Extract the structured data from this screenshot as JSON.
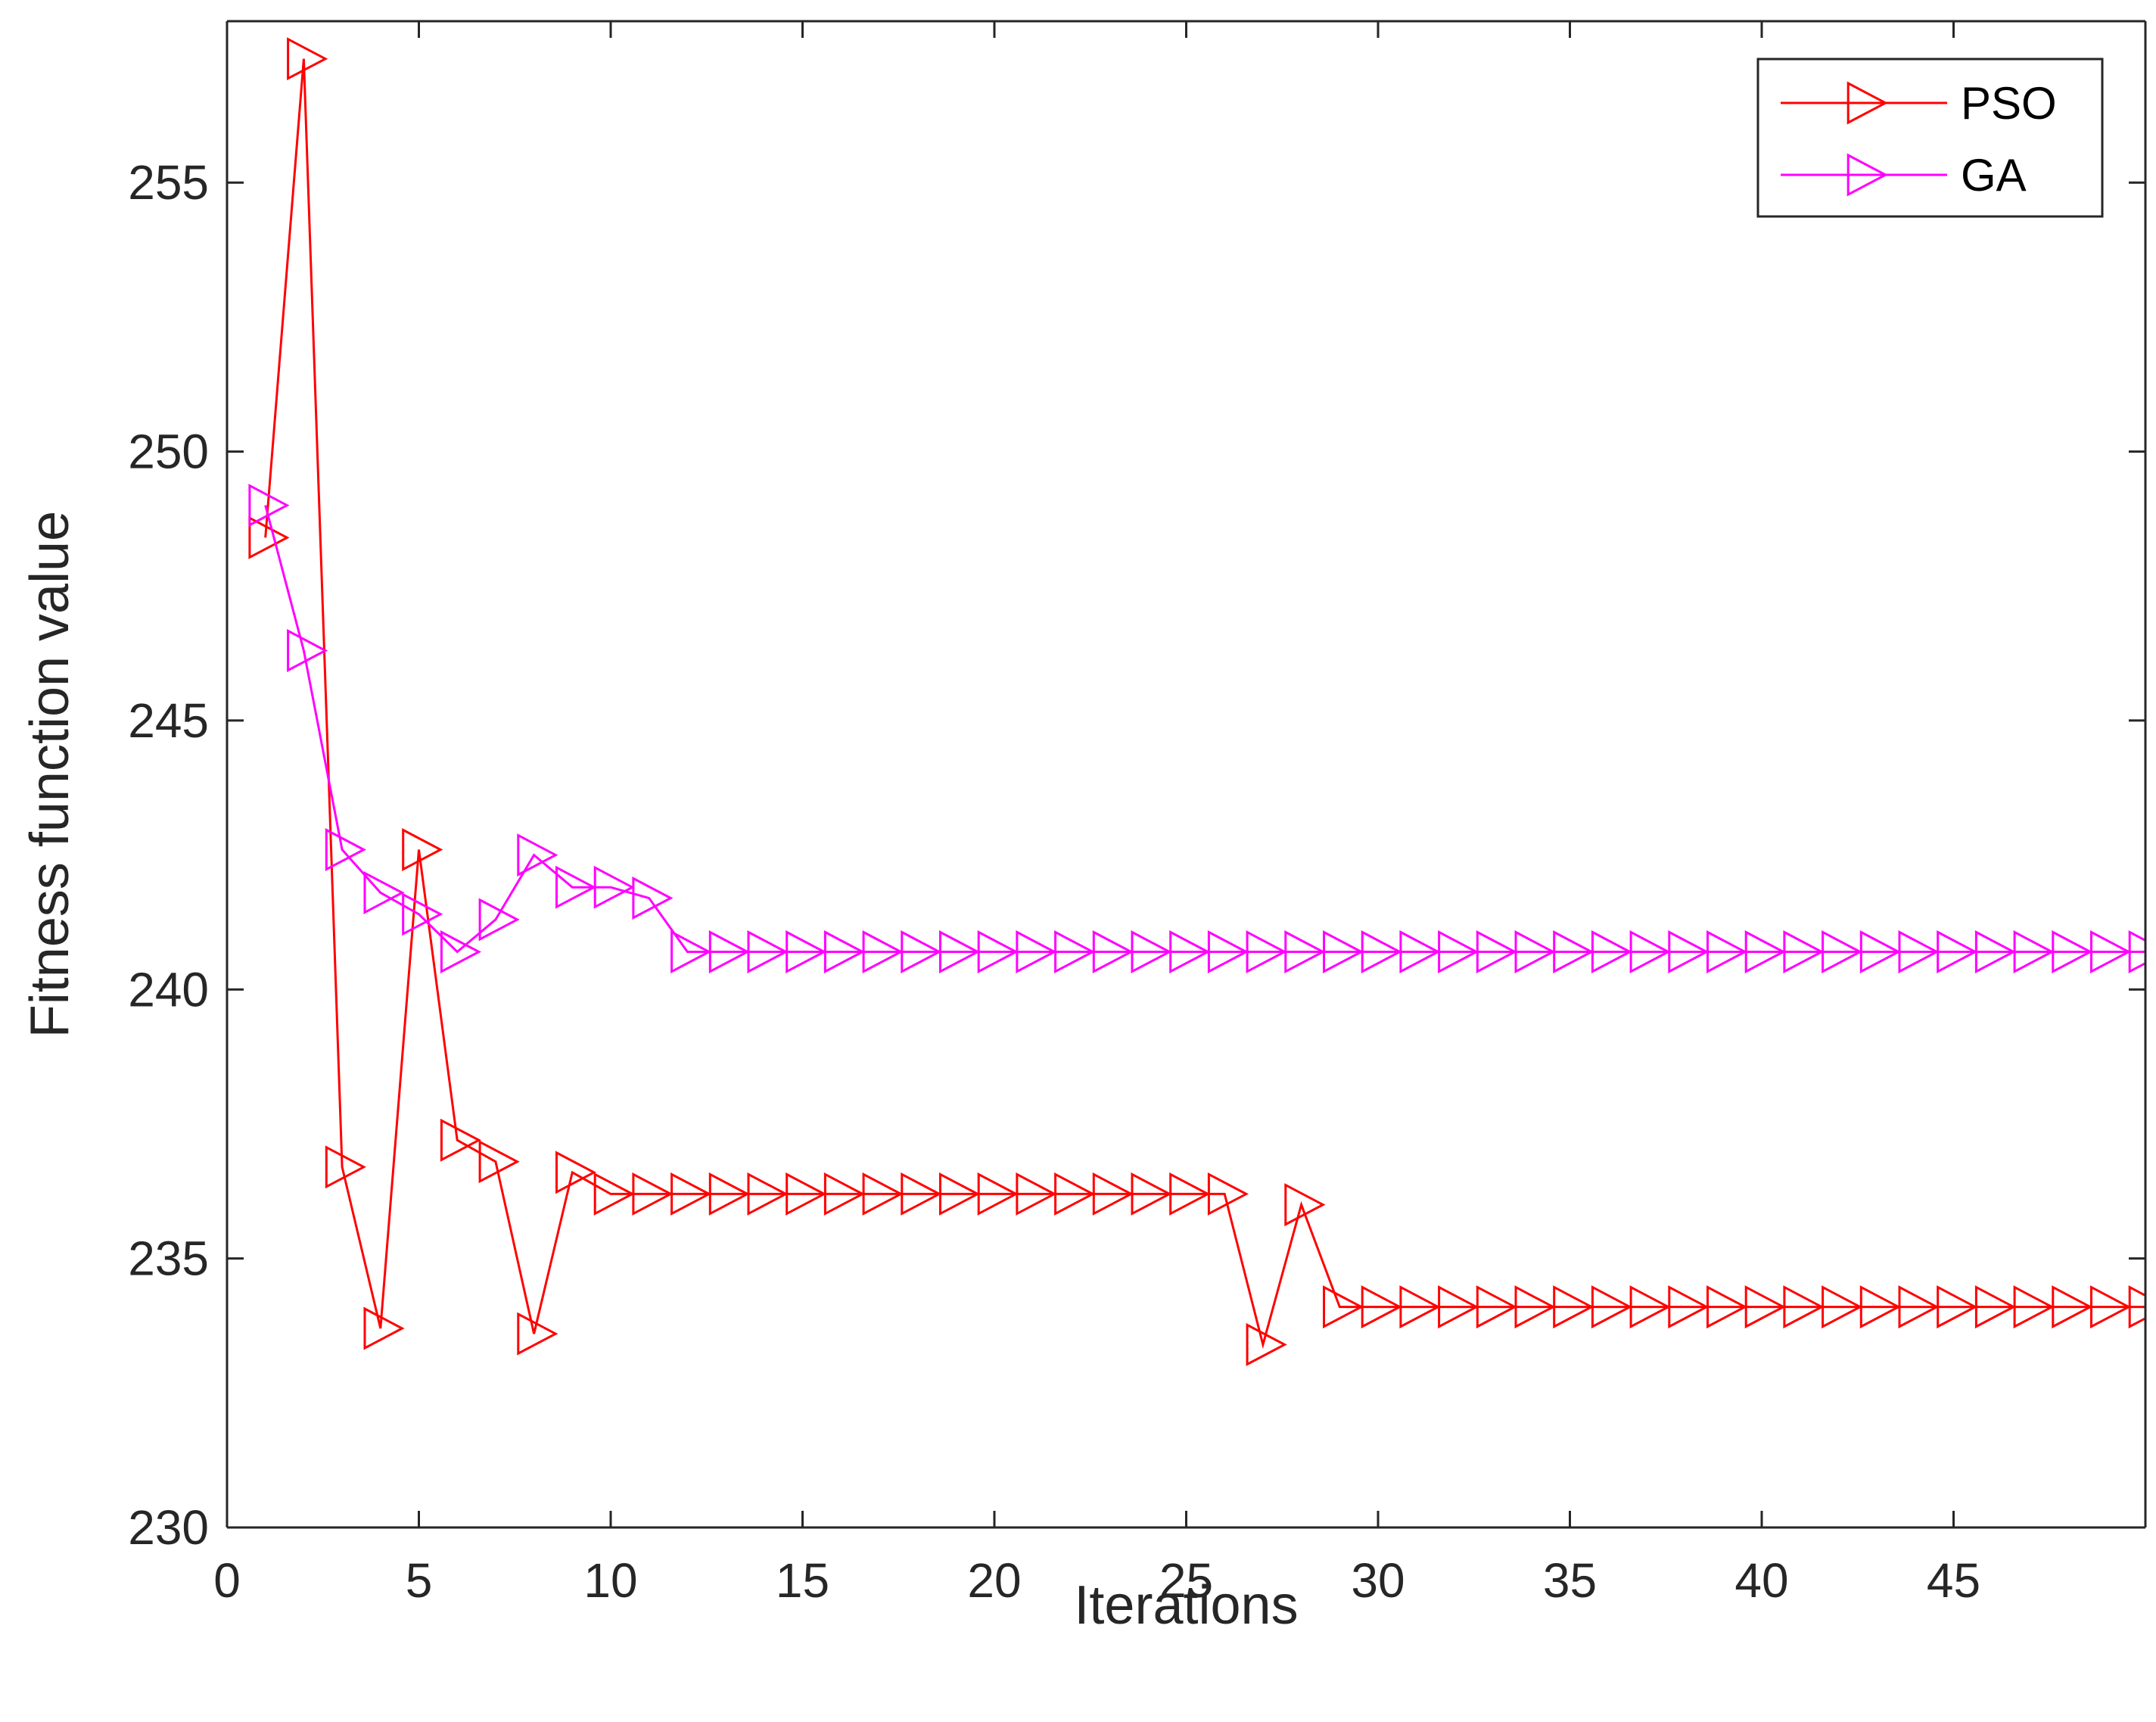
{
  "chart_data": {
    "type": "line",
    "title": "",
    "xlabel": "Iterations",
    "ylabel": "Fitness function value",
    "xlim": [
      0,
      50
    ],
    "ylim": [
      230,
      258
    ],
    "xticks": [
      0,
      5,
      10,
      15,
      20,
      25,
      30,
      35,
      40,
      45
    ],
    "yticks": [
      230,
      235,
      240,
      245,
      250,
      255
    ],
    "grid": false,
    "legend_position": "top-right",
    "marker": "right-pointing-triangle",
    "series": [
      {
        "name": "PSO",
        "color": "#ff0000",
        "x": [
          1,
          2,
          3,
          4,
          5,
          6,
          7,
          8,
          9,
          10,
          11,
          12,
          13,
          14,
          15,
          16,
          17,
          18,
          19,
          20,
          21,
          22,
          23,
          24,
          25,
          26,
          27,
          28,
          29,
          30,
          31,
          32,
          33,
          34,
          35,
          36,
          37,
          38,
          39,
          40,
          41,
          42,
          43,
          44,
          45,
          46,
          47,
          48,
          49,
          50
        ],
        "y": [
          248.4,
          257.3,
          236.7,
          233.7,
          242.6,
          237.2,
          236.8,
          233.6,
          236.6,
          236.2,
          236.2,
          236.2,
          236.2,
          236.2,
          236.2,
          236.2,
          236.2,
          236.2,
          236.2,
          236.2,
          236.2,
          236.2,
          236.2,
          236.2,
          236.2,
          236.2,
          233.4,
          236.0,
          234.1,
          234.1,
          234.1,
          234.1,
          234.1,
          234.1,
          234.1,
          234.1,
          234.1,
          234.1,
          234.1,
          234.1,
          234.1,
          234.1,
          234.1,
          234.1,
          234.1,
          234.1,
          234.1,
          234.1,
          234.1,
          234.1
        ]
      },
      {
        "name": "GA",
        "color": "#ff00ff",
        "x": [
          1,
          2,
          3,
          4,
          5,
          6,
          7,
          8,
          9,
          10,
          11,
          12,
          13,
          14,
          15,
          16,
          17,
          18,
          19,
          20,
          21,
          22,
          23,
          24,
          25,
          26,
          27,
          28,
          29,
          30,
          31,
          32,
          33,
          34,
          35,
          36,
          37,
          38,
          39,
          40,
          41,
          42,
          43,
          44,
          45,
          46,
          47,
          48,
          49,
          50
        ],
        "y": [
          249.0,
          246.3,
          242.6,
          241.8,
          241.4,
          240.7,
          241.3,
          242.5,
          241.9,
          241.9,
          241.7,
          240.7,
          240.7,
          240.7,
          240.7,
          240.7,
          240.7,
          240.7,
          240.7,
          240.7,
          240.7,
          240.7,
          240.7,
          240.7,
          240.7,
          240.7,
          240.7,
          240.7,
          240.7,
          240.7,
          240.7,
          240.7,
          240.7,
          240.7,
          240.7,
          240.7,
          240.7,
          240.7,
          240.7,
          240.7,
          240.7,
          240.7,
          240.7,
          240.7,
          240.7,
          240.7,
          240.7,
          240.7,
          240.7,
          240.7
        ]
      }
    ]
  }
}
